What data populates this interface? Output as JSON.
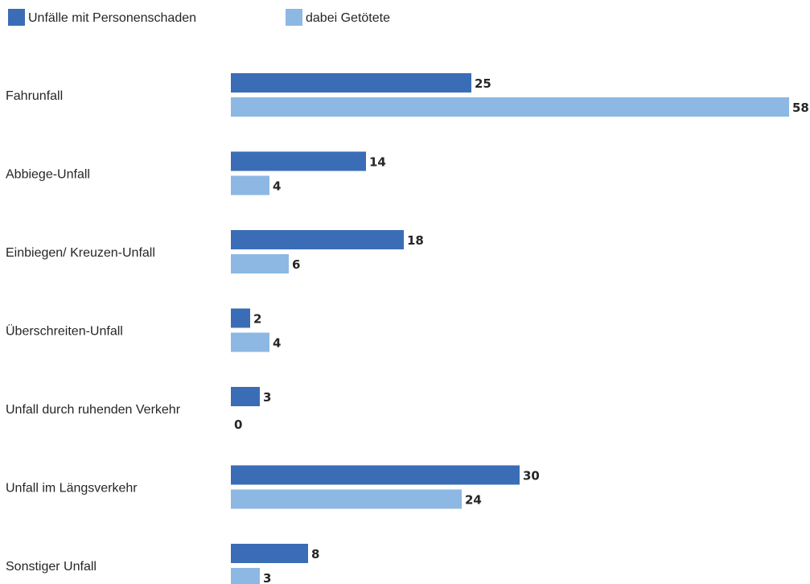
{
  "chart_data": {
    "type": "bar",
    "orientation": "horizontal",
    "title": "",
    "xlabel": "",
    "ylabel": "",
    "categories": [
      "Fahrunfall",
      "Abbiege-Unfall",
      "Einbiegen/ Kreuzen-Unfall",
      "Überschreiten-Unfall",
      "Unfall durch ruhenden Verkehr",
      "Unfall im Längsverkehr",
      "Sonstiger Unfall"
    ],
    "series": [
      {
        "name": "Unfälle mit Personenschaden",
        "color": "#3a6db5",
        "values": [
          25,
          14,
          18,
          2,
          3,
          30,
          8
        ]
      },
      {
        "name": "dabei Getötete",
        "color": "#8db8e3",
        "values": [
          58,
          4,
          6,
          4,
          0,
          24,
          3
        ]
      }
    ],
    "xlim": [
      0,
      58
    ],
    "grid": false,
    "legend_position": "top-left",
    "data_labels": true
  }
}
